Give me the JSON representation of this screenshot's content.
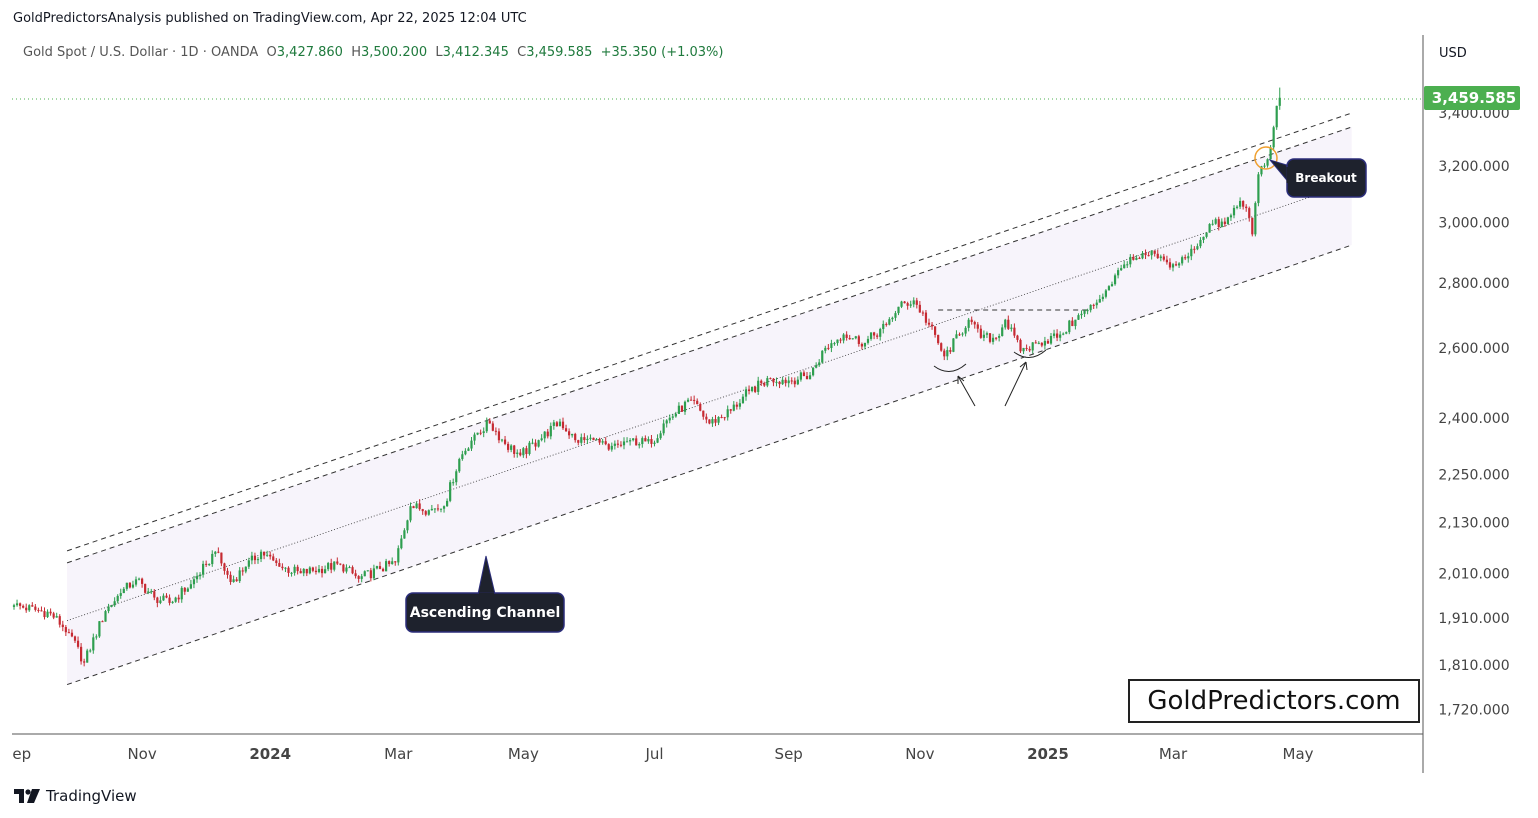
{
  "publisher_line": "GoldPredictorsAnalysis published on TradingView.com, Apr 22, 2025 12:04 UTC",
  "legend": {
    "symbol": "Gold Spot / U.S. Dollar · 1D · OANDA",
    "open_label": "O",
    "open": "3,427.860",
    "high_label": "H",
    "high": "3,500.200",
    "low_label": "L",
    "low": "3,412.345",
    "close_label": "C",
    "close": "3,459.585",
    "change": "+35.350 (+1.03%)"
  },
  "currency": "USD",
  "last_price_label": "3,459.585",
  "watermark": "GoldPredictors.com",
  "footer_brand": "TradingView",
  "colors": {
    "up": "#2e9e4f",
    "down": "#c62a32",
    "last_price": "#4caf50",
    "callout_bg": "#1e222d",
    "callout_border": "#2b2d7a",
    "breakout_circle": "#f0a030"
  },
  "chart_data": {
    "type": "candlestick",
    "title": "Gold Spot / U.S. Dollar · 1D · OANDA",
    "y_scale": "log",
    "ylim": [
      1680,
      3650
    ],
    "xlim": [
      -1,
      461
    ],
    "x_unit": "trading-day index",
    "y_ticks": [
      3400,
      3200,
      3000,
      2800,
      2600,
      2400,
      2250,
      2130,
      2010,
      1910,
      1810,
      1720
    ],
    "y_tick_labels": [
      "3,400.000",
      "3,200.000",
      "3,000.000",
      "2,800.000",
      "2,600.000",
      "2,400.000",
      "2,250.000",
      "2,130.000",
      "2,010.000",
      "1,910.000",
      "1,810.000",
      "1,720.000"
    ],
    "x_ticks": [
      {
        "x": 1,
        "label": "Sep",
        "bold": false
      },
      {
        "x": 42,
        "label": "Nov",
        "bold": false
      },
      {
        "x": 84,
        "label": "2024",
        "bold": true
      },
      {
        "x": 126,
        "label": "Mar",
        "bold": false
      },
      {
        "x": 167,
        "label": "May",
        "bold": false
      },
      {
        "x": 210,
        "label": "Jul",
        "bold": false
      },
      {
        "x": 254,
        "label": "Sep",
        "bold": false
      },
      {
        "x": 297,
        "label": "Nov",
        "bold": false
      },
      {
        "x": 339,
        "label": "2025",
        "bold": true
      },
      {
        "x": 380,
        "label": "Mar",
        "bold": false
      },
      {
        "x": 421,
        "label": "May",
        "bold": false
      }
    ],
    "close_anchors": [
      [
        0,
        1938
      ],
      [
        12,
        1920
      ],
      [
        18,
        1878
      ],
      [
        23,
        1815
      ],
      [
        30,
        1925
      ],
      [
        35,
        1965
      ],
      [
        40,
        1996
      ],
      [
        46,
        1955
      ],
      [
        51,
        1943
      ],
      [
        58,
        1985
      ],
      [
        63,
        2030
      ],
      [
        66,
        2060
      ],
      [
        71,
        1990
      ],
      [
        76,
        2025
      ],
      [
        81,
        2060
      ],
      [
        87,
        2025
      ],
      [
        94,
        2010
      ],
      [
        100,
        2020
      ],
      [
        107,
        2030
      ],
      [
        113,
        1997
      ],
      [
        120,
        2020
      ],
      [
        125,
        2035
      ],
      [
        130,
        2170
      ],
      [
        136,
        2160
      ],
      [
        141,
        2170
      ],
      [
        146,
        2290
      ],
      [
        151,
        2355
      ],
      [
        156,
        2385
      ],
      [
        161,
        2330
      ],
      [
        166,
        2300
      ],
      [
        172,
        2340
      ],
      [
        179,
        2390
      ],
      [
        184,
        2340
      ],
      [
        190,
        2340
      ],
      [
        195,
        2315
      ],
      [
        202,
        2340
      ],
      [
        209,
        2330
      ],
      [
        213,
        2385
      ],
      [
        222,
        2450
      ],
      [
        228,
        2385
      ],
      [
        235,
        2420
      ],
      [
        241,
        2475
      ],
      [
        248,
        2510
      ],
      [
        254,
        2505
      ],
      [
        261,
        2520
      ],
      [
        266,
        2600
      ],
      [
        272,
        2640
      ],
      [
        279,
        2615
      ],
      [
        286,
        2670
      ],
      [
        290,
        2725
      ],
      [
        295,
        2745
      ],
      [
        300,
        2670
      ],
      [
        305,
        2575
      ],
      [
        310,
        2640
      ],
      [
        313,
        2685
      ],
      [
        317,
        2630
      ],
      [
        322,
        2630
      ],
      [
        325,
        2685
      ],
      [
        330,
        2590
      ],
      [
        336,
        2615
      ],
      [
        343,
        2640
      ],
      [
        348,
        2685
      ],
      [
        354,
        2730
      ],
      [
        359,
        2790
      ],
      [
        364,
        2860
      ],
      [
        369,
        2880
      ],
      [
        374,
        2895
      ],
      [
        379,
        2850
      ],
      [
        384,
        2880
      ],
      [
        387,
        2910
      ],
      [
        392,
        2995
      ],
      [
        397,
        2995
      ],
      [
        402,
        3075
      ],
      [
        404,
        3050
      ],
      [
        406,
        2960
      ],
      [
        408,
        3170
      ],
      [
        411,
        3225
      ],
      [
        413,
        3345
      ],
      [
        414,
        3427.86
      ]
    ],
    "last_bar": {
      "x": 415,
      "open": 3427.86,
      "high": 3500.2,
      "low": 3412.345,
      "close": 3459.585
    },
    "last_price": 3459.585,
    "trendlines": [
      {
        "name": "channel-upper-outer",
        "style": "dashed",
        "from": [
          17.4,
          2062
        ],
        "to": [
          438.6,
          3400
        ]
      },
      {
        "name": "channel-upper-inner",
        "style": "dashed",
        "from": [
          17.4,
          2034
        ],
        "to": [
          438.6,
          3346
        ]
      },
      {
        "name": "channel-lower",
        "style": "dashed",
        "from": [
          17.4,
          1770
        ],
        "to": [
          438.6,
          2924
        ]
      },
      {
        "name": "channel-midline",
        "style": "dotted",
        "from": [
          17.4,
          1904
        ],
        "to": [
          428,
          3100
        ]
      },
      {
        "name": "neckline",
        "style": "dashed",
        "from": [
          303,
          2715
        ],
        "to": [
          352,
          2715
        ]
      }
    ],
    "annotations": [
      {
        "text": "Ascending Channel",
        "points_to": [
          155,
          2140
        ]
      },
      {
        "text": "Breakout",
        "points_to": [
          411,
          3225
        ]
      }
    ]
  }
}
